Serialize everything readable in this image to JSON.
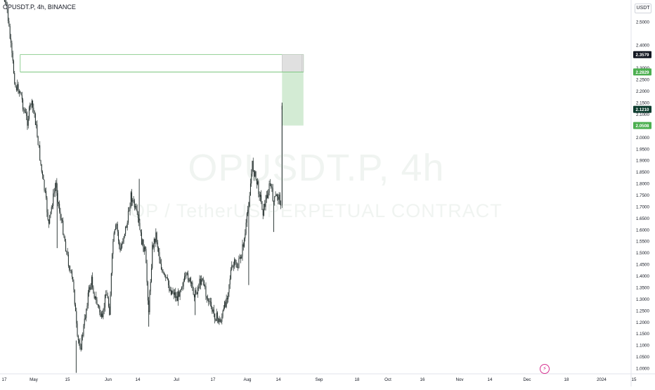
{
  "header": {
    "symbol_line": "OPUSDT.P, 4h, BINANCE",
    "currency_button": "USDT"
  },
  "watermark": {
    "line1": "OPUSDT.P, 4h",
    "line2": "OP / TetherUS PERPETUAL CONTRACT"
  },
  "colors": {
    "candle": "#1e2a28",
    "zone_green": "#c8e6c9",
    "zone_gray": "#e0e0e0",
    "line_green": "#66bb6a",
    "badge_dark": "#131722",
    "badge_green": "#4caf50",
    "badge_current": "#0c3b2e",
    "logo": "#d62f8f"
  },
  "chart_data": {
    "type": "candlestick",
    "title": "",
    "xlabel": "",
    "ylabel": "",
    "ylim": [
      0.96,
      2.58
    ],
    "grid": false,
    "x_ticks": [
      "17",
      "May",
      "15",
      "Jun",
      "14",
      "Jul",
      "17",
      "Aug",
      "14",
      "Sep",
      "18",
      "Oct",
      "16",
      "Nov",
      "14",
      "Dec",
      "18",
      "2024",
      "15"
    ],
    "y_ticks": [
      "2.5000",
      "2.4000",
      "2.3000",
      "2.2500",
      "2.2000",
      "2.1500",
      "2.1000",
      "2.0000",
      "1.9500",
      "1.9000",
      "1.8500",
      "1.8000",
      "1.7500",
      "1.7000",
      "1.6500",
      "1.6000",
      "1.5500",
      "1.5000",
      "1.4500",
      "1.4000",
      "1.3500",
      "1.3000",
      "1.2500",
      "1.2000",
      "1.1500",
      "1.1000",
      "1.0500",
      "1.0000"
    ],
    "price_badges": [
      {
        "label": "2.3579",
        "value": 2.3579,
        "style": "dark"
      },
      {
        "label": "2.2829",
        "value": 2.2829,
        "style": "green"
      },
      {
        "label": "2.1210",
        "value": 2.121,
        "style": "current"
      },
      {
        "label": "2.0508",
        "value": 2.0508,
        "style": "green"
      }
    ],
    "zones": [
      {
        "type": "resistance-box",
        "from_date": "2023-05-01",
        "to_date": "2023-12-25",
        "top": 2.3579,
        "bottom": 2.2829
      },
      {
        "type": "target-box",
        "from_date": "2023-12-07",
        "to_date": "2023-12-25",
        "top": 2.2829,
        "bottom": 2.0508
      }
    ],
    "series": [
      {
        "kind": "close-path",
        "points": [
          [
            "2023-04-17",
            2.6
          ],
          [
            "2023-04-20",
            2.55
          ],
          [
            "2023-04-24",
            2.35
          ],
          [
            "2023-04-27",
            2.22
          ],
          [
            "2023-05-01",
            2.2
          ],
          [
            "2023-05-04",
            2.12
          ],
          [
            "2023-05-07",
            2.07
          ],
          [
            "2023-05-10",
            2.15
          ],
          [
            "2023-05-13",
            2.1
          ],
          [
            "2023-05-16",
            1.98
          ],
          [
            "2023-05-19",
            1.85
          ],
          [
            "2023-05-22",
            1.75
          ],
          [
            "2023-05-25",
            1.62
          ],
          [
            "2023-05-28",
            1.72
          ],
          [
            "2023-05-31",
            1.8
          ],
          [
            "2023-06-03",
            1.68
          ],
          [
            "2023-06-06",
            1.6
          ],
          [
            "2023-06-09",
            1.5
          ],
          [
            "2023-06-12",
            1.42
          ],
          [
            "2023-06-15",
            1.35
          ],
          [
            "2023-06-18",
            1.12
          ],
          [
            "2023-06-21",
            1.1
          ],
          [
            "2023-06-24",
            1.2
          ],
          [
            "2023-06-27",
            1.32
          ],
          [
            "2023-06-30",
            1.38
          ],
          [
            "2023-07-03",
            1.3
          ],
          [
            "2023-07-06",
            1.26
          ],
          [
            "2023-07-09",
            1.2
          ],
          [
            "2023-07-12",
            1.34
          ],
          [
            "2023-07-15",
            1.25
          ],
          [
            "2023-07-18",
            1.55
          ],
          [
            "2023-07-21",
            1.62
          ],
          [
            "2023-07-24",
            1.5
          ],
          [
            "2023-07-27",
            1.58
          ],
          [
            "2023-07-30",
            1.63
          ],
          [
            "2023-08-02",
            1.75
          ],
          [
            "2023-08-05",
            1.7
          ],
          [
            "2023-08-08",
            1.64
          ],
          [
            "2023-08-11",
            1.55
          ],
          [
            "2023-08-14",
            1.5
          ],
          [
            "2023-08-17",
            1.25
          ],
          [
            "2023-08-20",
            1.52
          ],
          [
            "2023-08-23",
            1.58
          ],
          [
            "2023-08-26",
            1.48
          ],
          [
            "2023-08-29",
            1.4
          ],
          [
            "2023-09-01",
            1.38
          ],
          [
            "2023-09-04",
            1.34
          ],
          [
            "2023-09-07",
            1.33
          ],
          [
            "2023-09-10",
            1.3
          ],
          [
            "2023-09-13",
            1.36
          ],
          [
            "2023-09-16",
            1.38
          ],
          [
            "2023-09-19",
            1.4
          ],
          [
            "2023-09-22",
            1.35
          ],
          [
            "2023-09-25",
            1.32
          ],
          [
            "2023-09-28",
            1.36
          ],
          [
            "2023-10-01",
            1.4
          ],
          [
            "2023-10-04",
            1.32
          ],
          [
            "2023-10-07",
            1.28
          ],
          [
            "2023-10-10",
            1.24
          ],
          [
            "2023-10-13",
            1.22
          ],
          [
            "2023-10-16",
            1.2
          ],
          [
            "2023-10-19",
            1.25
          ],
          [
            "2023-10-22",
            1.32
          ],
          [
            "2023-10-25",
            1.42
          ],
          [
            "2023-10-28",
            1.45
          ],
          [
            "2023-10-31",
            1.44
          ],
          [
            "2023-11-03",
            1.5
          ],
          [
            "2023-11-06",
            1.58
          ],
          [
            "2023-11-09",
            1.72
          ],
          [
            "2023-11-12",
            1.88
          ],
          [
            "2023-11-15",
            1.82
          ],
          [
            "2023-11-18",
            1.76
          ],
          [
            "2023-11-21",
            1.68
          ],
          [
            "2023-11-24",
            1.74
          ],
          [
            "2023-11-27",
            1.8
          ],
          [
            "2023-11-30",
            1.72
          ],
          [
            "2023-12-03",
            1.75
          ],
          [
            "2023-12-06",
            1.72
          ],
          [
            "2023-12-07",
            2.12
          ]
        ],
        "spikes": [
          [
            "2023-06-01",
            1.52
          ],
          [
            "2023-06-17",
            0.98
          ],
          [
            "2023-08-09",
            1.82
          ],
          [
            "2023-08-17",
            1.18
          ],
          [
            "2023-09-25",
            1.23
          ],
          [
            "2023-11-09",
            1.36
          ],
          [
            "2023-11-30",
            1.59
          ],
          [
            "2023-12-07",
            2.15
          ]
        ]
      }
    ]
  }
}
